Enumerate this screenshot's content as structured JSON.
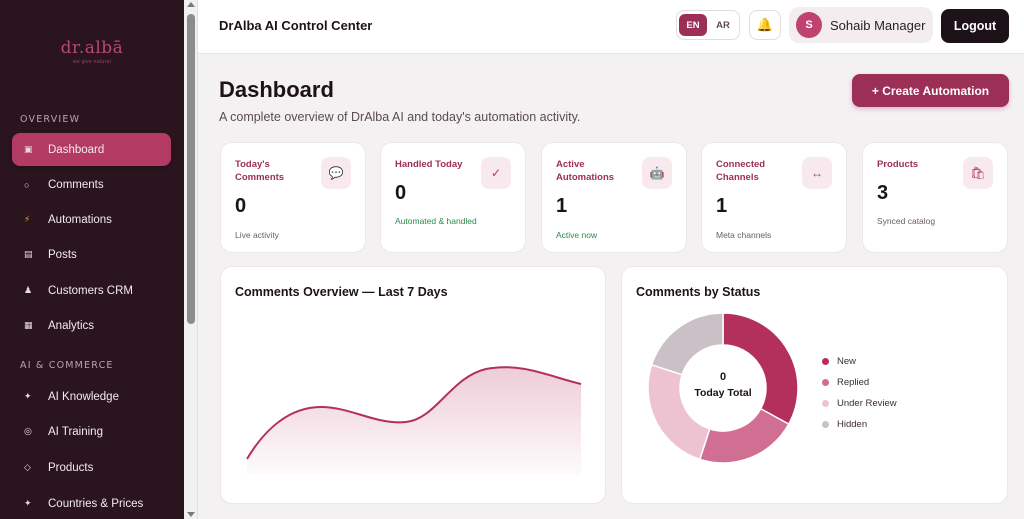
{
  "brand": {
    "logo_text": "dr.albā",
    "tagline": "we give natural"
  },
  "sidebar": {
    "sections": [
      {
        "label": "OVERVIEW"
      },
      {
        "label": "AI & COMMERCE"
      }
    ],
    "items": [
      {
        "label": "Dashboard",
        "icon": "dashboard-icon",
        "glyph": "▣"
      },
      {
        "label": "Comments",
        "icon": "comment-icon",
        "glyph": "○"
      },
      {
        "label": "Automations",
        "icon": "lightning-icon",
        "glyph": "⚡"
      },
      {
        "label": "Posts",
        "icon": "posts-icon",
        "glyph": "▤"
      },
      {
        "label": "Customers CRM",
        "icon": "user-icon",
        "glyph": "♟"
      },
      {
        "label": "Analytics",
        "icon": "analytics-icon",
        "glyph": "▦"
      },
      {
        "label": "AI Knowledge",
        "icon": "sparkle-icon",
        "glyph": "✦"
      },
      {
        "label": "AI Training",
        "icon": "target-icon",
        "glyph": "◎"
      },
      {
        "label": "Products",
        "icon": "diamond-icon",
        "glyph": "◇"
      },
      {
        "label": "Countries & Prices",
        "icon": "star-icon",
        "glyph": "✦"
      }
    ]
  },
  "topbar": {
    "title": "DrAlba AI Control Center",
    "lang_en": "EN",
    "lang_ar": "AR",
    "bell_glyph": "🔔",
    "user_initial": "S",
    "user_name": "Sohaib Manager",
    "logout_label": "Logout"
  },
  "header": {
    "title": "Dashboard",
    "subtitle": "A complete overview of DrAlba AI and today's automation activity.",
    "create_label": "+ Create Automation"
  },
  "stats": [
    {
      "label": "Today's Comments",
      "value": "0",
      "note": "Live activity",
      "icon": "chat-bubble-icon",
      "glyph": "💬",
      "note_color": "gray"
    },
    {
      "label": "Handled Today",
      "value": "0",
      "note": "Automated & handled",
      "icon": "checkmark-icon",
      "glyph": "✓",
      "note_color": "green"
    },
    {
      "label": "Active Automations",
      "value": "1",
      "note": "Active now",
      "icon": "robot-icon",
      "glyph": "🤖",
      "note_color": "green"
    },
    {
      "label": "Connected Channels",
      "value": "1",
      "note": "Meta channels",
      "icon": "arrows-icon",
      "glyph": "↔",
      "note_color": "gray"
    },
    {
      "label": "Products",
      "value": "3",
      "note": "Synced catalog",
      "icon": "products-icon",
      "glyph": "🛍",
      "note_color": "gray"
    }
  ],
  "line_panel": {
    "title": "Comments Overview — Last 7 Days"
  },
  "status_panel": {
    "title": "Comments by Status",
    "total": "0",
    "total_label": "Today Total",
    "legend": [
      {
        "name": "New",
        "color": "#b3305c",
        "share": 0.33
      },
      {
        "name": "Replied",
        "color": "#d06f92",
        "share": 0.22
      },
      {
        "name": "Under Review",
        "color": "#eec3d1",
        "share": 0.25
      },
      {
        "name": "Hidden",
        "color": "#c9c1c5",
        "share": 0.2
      }
    ]
  },
  "colors": {
    "accent": "#9c2f55",
    "sidebar_bg": "#2a151f",
    "active_nav": "#b23a63"
  }
}
